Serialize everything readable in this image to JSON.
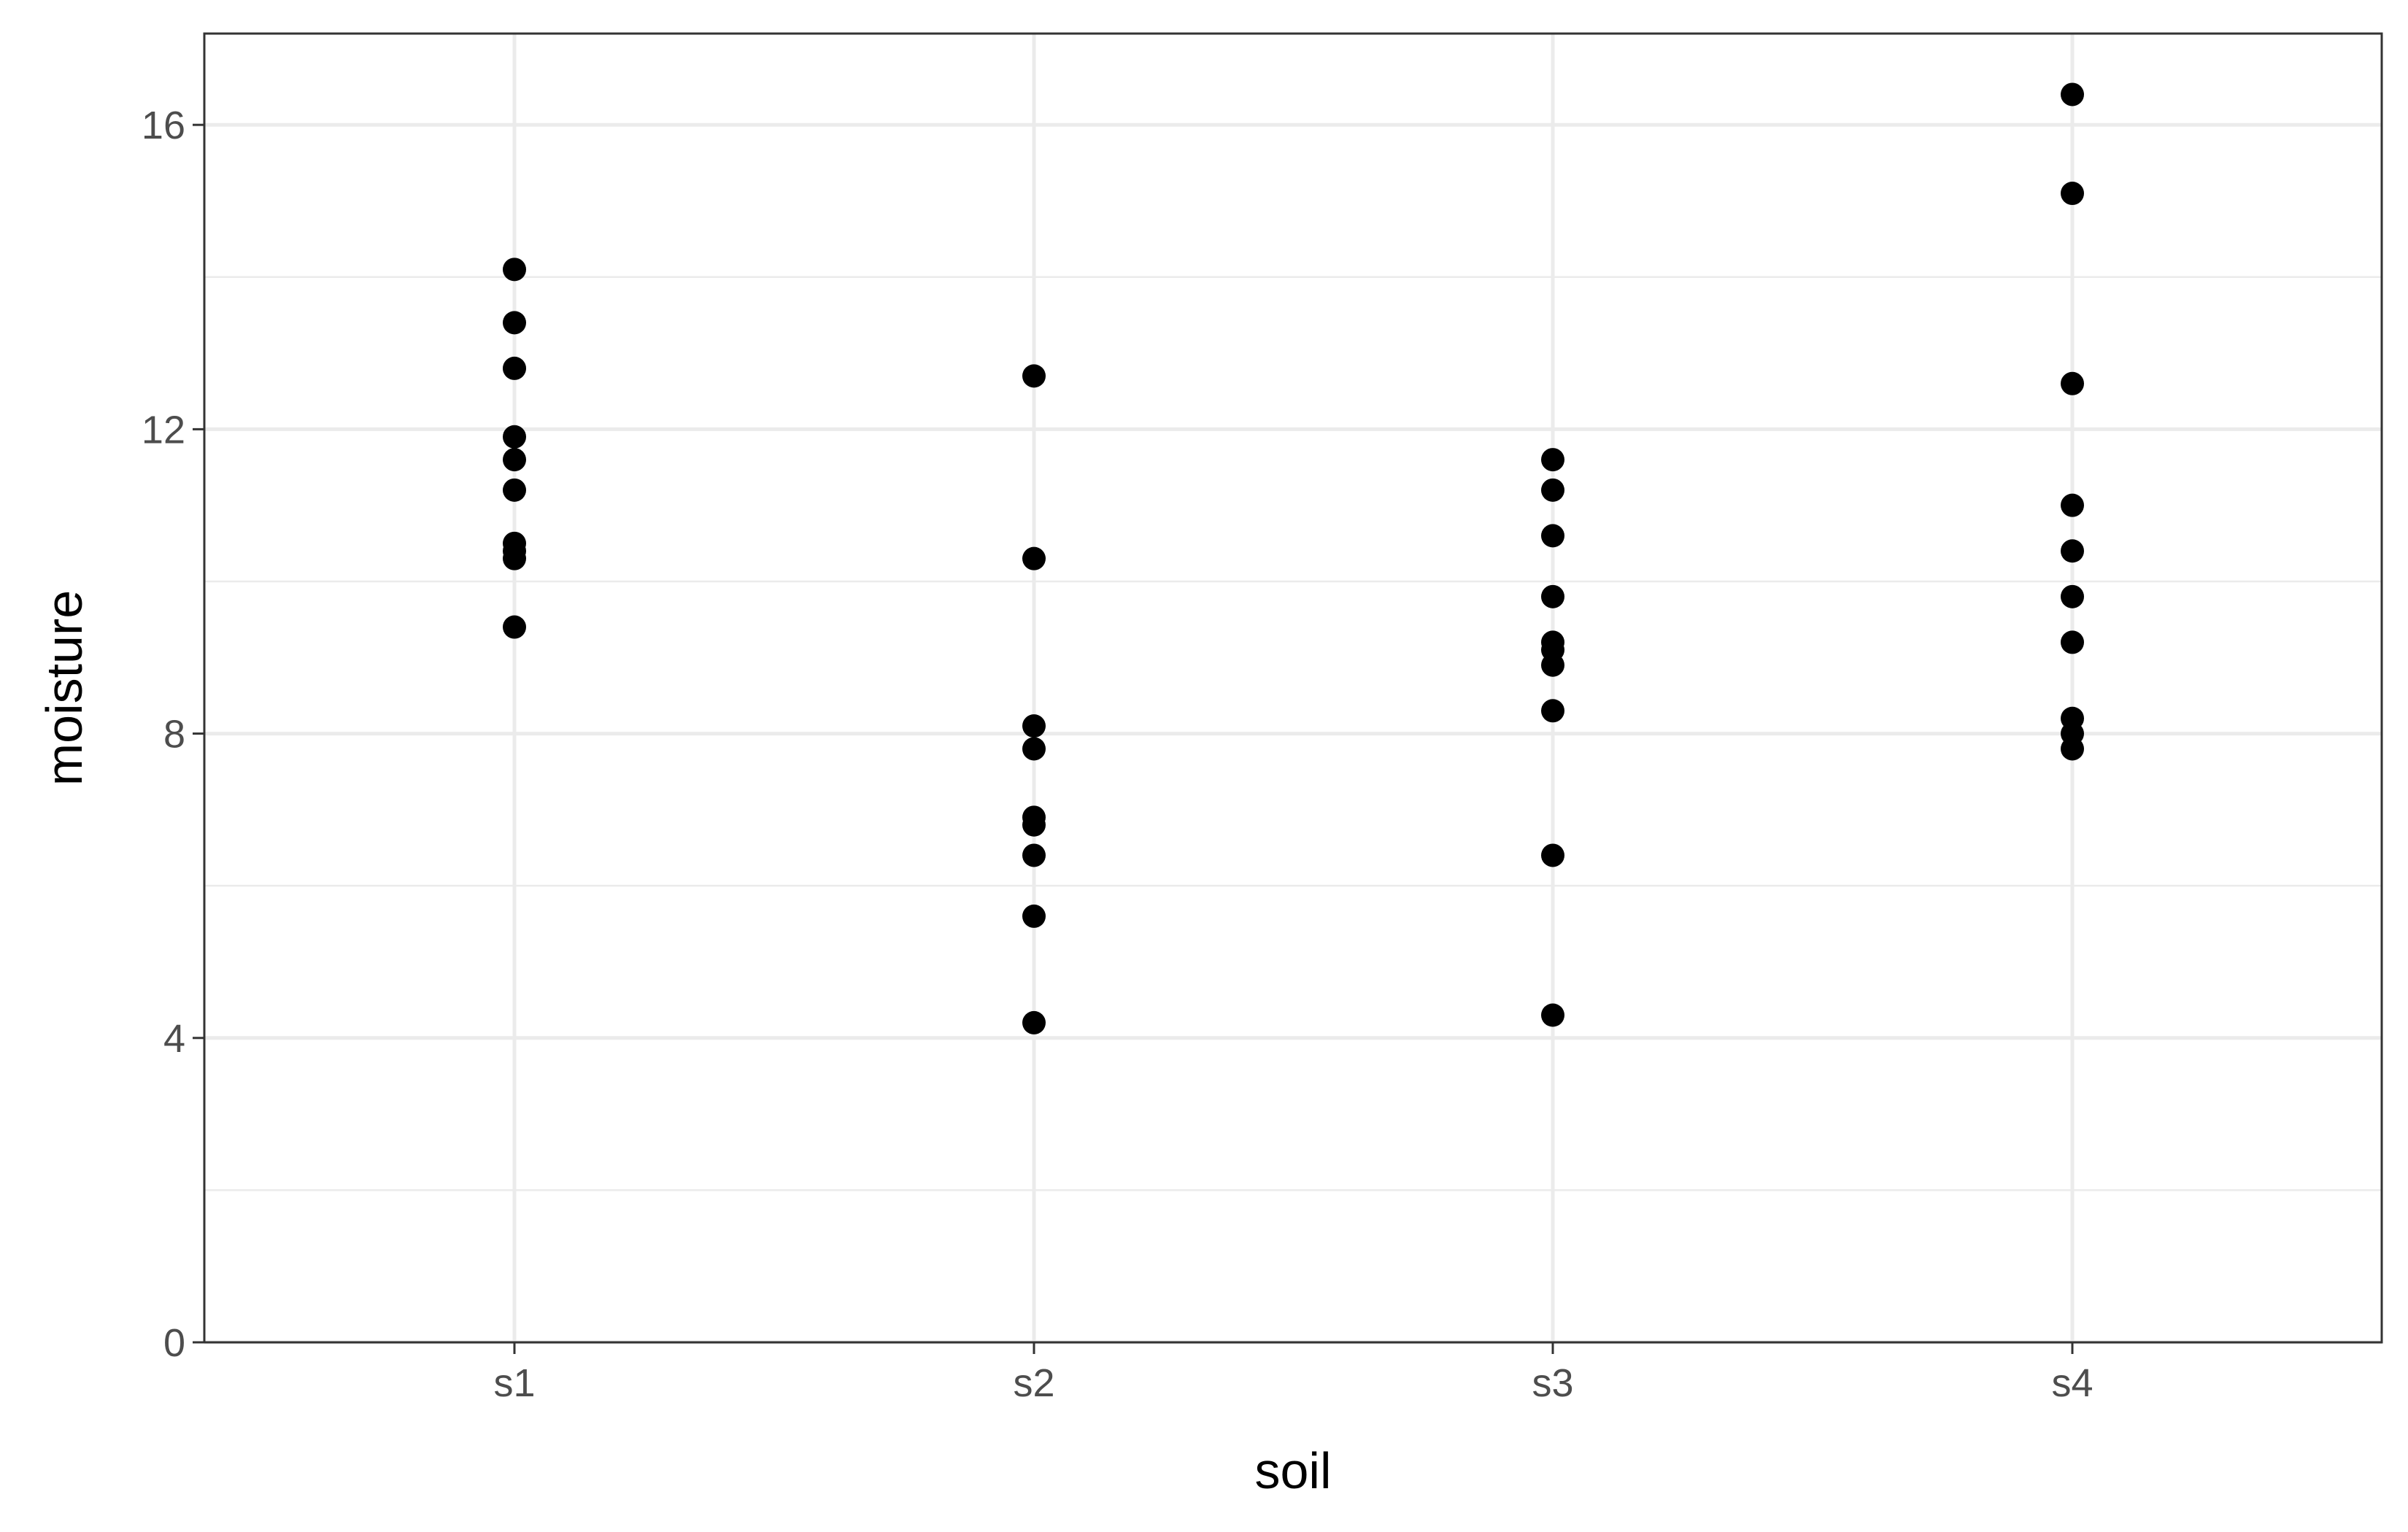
{
  "chart_data": {
    "type": "scatter",
    "title": "",
    "xlabel": "soil",
    "ylabel": "moisture",
    "categories": [
      "s1",
      "s2",
      "s3",
      "s4"
    ],
    "ylim": [
      0,
      17.2
    ],
    "y_ticks": [
      0,
      4,
      8,
      12,
      16
    ],
    "y_tick_labels": [
      "0",
      "4",
      "8",
      "12",
      "16"
    ],
    "grid": true,
    "legend": "none",
    "colors": {
      "points": "#000000",
      "grid": "#ebebeb",
      "panel_border": "#333333",
      "tick_text": "#4d4d4d"
    },
    "points": [
      {
        "category": "s1",
        "values": [
          14.1,
          13.4,
          12.8,
          11.9,
          11.6,
          11.2,
          10.5,
          10.4,
          10.3,
          9.4
        ]
      },
      {
        "category": "s2",
        "values": [
          12.7,
          10.3,
          8.1,
          7.8,
          6.9,
          6.8,
          6.4,
          5.6,
          4.2
        ]
      },
      {
        "category": "s3",
        "values": [
          11.6,
          11.2,
          10.6,
          9.8,
          9.2,
          9.1,
          8.9,
          8.3,
          6.4,
          4.3
        ]
      },
      {
        "category": "s4",
        "values": [
          16.4,
          15.1,
          12.6,
          11.0,
          10.4,
          9.8,
          9.2,
          8.2,
          8.0,
          7.8
        ]
      }
    ]
  }
}
